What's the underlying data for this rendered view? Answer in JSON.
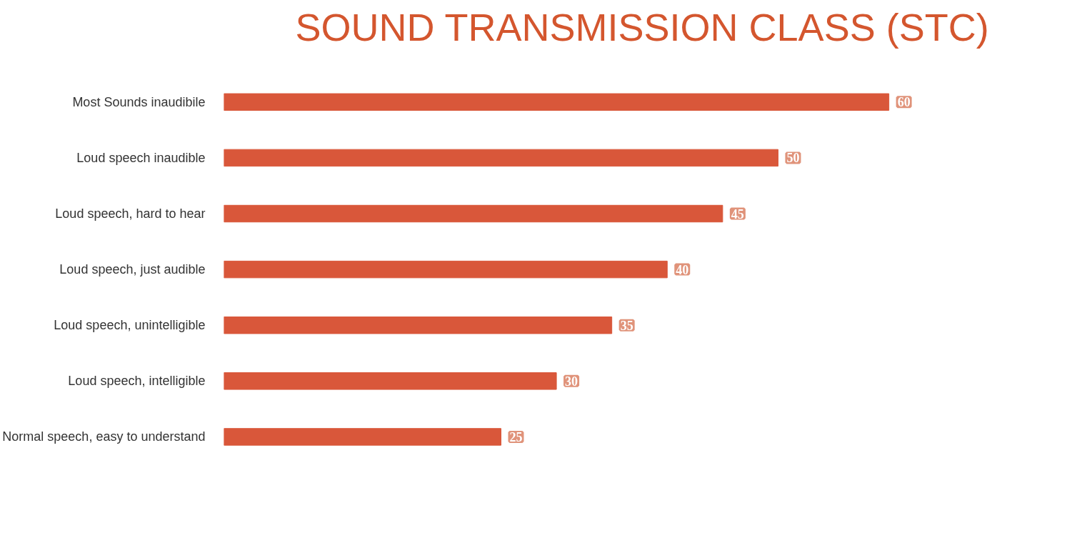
{
  "chart_data": {
    "type": "bar",
    "orientation": "horizontal",
    "title": "SOUND TRANSMISSION CLASS (STC)",
    "categories": [
      "Most Sounds inaudibile",
      "Loud speech inaudible",
      "Loud speech, hard to hear",
      "Loud speech, just audible",
      "Loud speech, unintelligible",
      "Loud speech, intelligible",
      "Normal speech, easy to understand"
    ],
    "values": [
      60,
      50,
      45,
      40,
      35,
      30,
      25
    ],
    "color": "#d9573a",
    "data_labels": true,
    "grid": false
  }
}
